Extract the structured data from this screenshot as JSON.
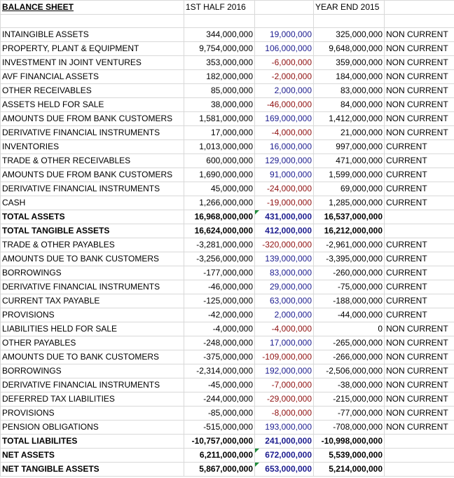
{
  "header": [
    "BALANCE SHEET",
    "1ST HALF 2016",
    "YEAR END 2015"
  ],
  "rows": [
    [
      "INTAINGIBLE ASSETS",
      "344,000,000",
      "19,000,000",
      "325,000,000",
      "NON CURRENT"
    ],
    [
      "PROPERTY, PLANT & EQUIPMENT",
      "9,754,000,000",
      "106,000,000",
      "9,648,000,000",
      "NON CURRENT"
    ],
    [
      "INVESTMENT IN JOINT VENTURES",
      "353,000,000",
      "-6,000,000",
      "359,000,000",
      "NON CURRENT"
    ],
    [
      "AVF FINANCIAL ASSETS",
      "182,000,000",
      "-2,000,000",
      "184,000,000",
      "NON CURRENT"
    ],
    [
      "OTHER RECEIVABLES",
      "85,000,000",
      "2,000,000",
      "83,000,000",
      "NON CURRENT"
    ],
    [
      "ASSETS HELD FOR SALE",
      "38,000,000",
      "-46,000,000",
      "84,000,000",
      "NON CURRENT"
    ],
    [
      "AMOUNTS DUE FROM BANK CUSTOMERS",
      "1,581,000,000",
      "169,000,000",
      "1,412,000,000",
      "NON CURRENT"
    ],
    [
      "DERIVATIVE FINANCIAL INSTRUMENTS",
      "17,000,000",
      "-4,000,000",
      "21,000,000",
      "NON CURRENT"
    ],
    [
      "INVENTORIES",
      "1,013,000,000",
      "16,000,000",
      "997,000,000",
      "CURRENT"
    ],
    [
      "TRADE & OTHER RECEIVABLES",
      "600,000,000",
      "129,000,000",
      "471,000,000",
      "CURRENT"
    ],
    [
      "AMOUNTS DUE FROM BANK CUSTOMERS",
      "1,690,000,000",
      "91,000,000",
      "1,599,000,000",
      "CURRENT"
    ],
    [
      "DERIVATIVE FINANCIAL INSTRUMENTS",
      "45,000,000",
      "-24,000,000",
      "69,000,000",
      "CURRENT"
    ],
    [
      "CASH",
      "1,266,000,000",
      "-19,000,000",
      "1,285,000,000",
      "CURRENT"
    ],
    [
      "TOTAL ASSETS",
      "16,968,000,000",
      "431,000,000",
      "16,537,000,000"
    ],
    [
      "TOTAL TANGIBLE ASSETS",
      "16,624,000,000",
      "412,000,000",
      "16,212,000,000"
    ],
    [
      "TRADE & OTHER PAYABLES",
      "-3,281,000,000",
      "-320,000,000",
      "-2,961,000,000",
      "CURRENT"
    ],
    [
      "AMOUNTS DUE TO BANK CUSTOMERS",
      "-3,256,000,000",
      "139,000,000",
      "-3,395,000,000",
      "CURRENT"
    ],
    [
      "BORROWINGS",
      "-177,000,000",
      "83,000,000",
      "-260,000,000",
      "CURRENT"
    ],
    [
      "DERIVATIVE FINANCIAL INSTRUMENTS",
      "-46,000,000",
      "29,000,000",
      "-75,000,000",
      "CURRENT"
    ],
    [
      "CURRENT TAX PAYABLE",
      "-125,000,000",
      "63,000,000",
      "-188,000,000",
      "CURRENT"
    ],
    [
      "PROVISIONS",
      "-42,000,000",
      "2,000,000",
      "-44,000,000",
      "CURRENT"
    ],
    [
      "LIABILITIES HELD FOR SALE",
      "-4,000,000",
      "-4,000,000",
      "0",
      "NON CURRENT"
    ],
    [
      "OTHER PAYABLES",
      "-248,000,000",
      "17,000,000",
      "-265,000,000",
      "NON CURRENT"
    ],
    [
      "AMOUNTS DUE TO BANK CUSTOMERS",
      "-375,000,000",
      "-109,000,000",
      "-266,000,000",
      "NON CURRENT"
    ],
    [
      "BORROWINGS",
      "-2,314,000,000",
      "192,000,000",
      "-2,506,000,000",
      "NON CURRENT"
    ],
    [
      "DERIVATIVE FINANCIAL INSTRUMENTS",
      "-45,000,000",
      "-7,000,000",
      "-38,000,000",
      "NON CURRENT"
    ],
    [
      "DEFERRED TAX LIABILITIES",
      "-244,000,000",
      "-29,000,000",
      "-215,000,000",
      "NON CURRENT"
    ],
    [
      "PROVISIONS",
      "-85,000,000",
      "-8,000,000",
      "-77,000,000",
      "NON CURRENT"
    ],
    [
      "PENSION OBLIGATIONS",
      "-515,000,000",
      "193,000,000",
      "-708,000,000",
      "NON CURRENT"
    ],
    [
      "TOTAL LIABILITES",
      "-10,757,000,000",
      "241,000,000",
      "-10,998,000,000"
    ],
    [
      "NET ASSETS",
      "6,211,000,000",
      "672,000,000",
      "5,539,000,000"
    ],
    [
      "NET TANGIBLE ASSETS",
      "5,867,000,000",
      "653,000,000",
      "5,214,000,000"
    ]
  ]
}
